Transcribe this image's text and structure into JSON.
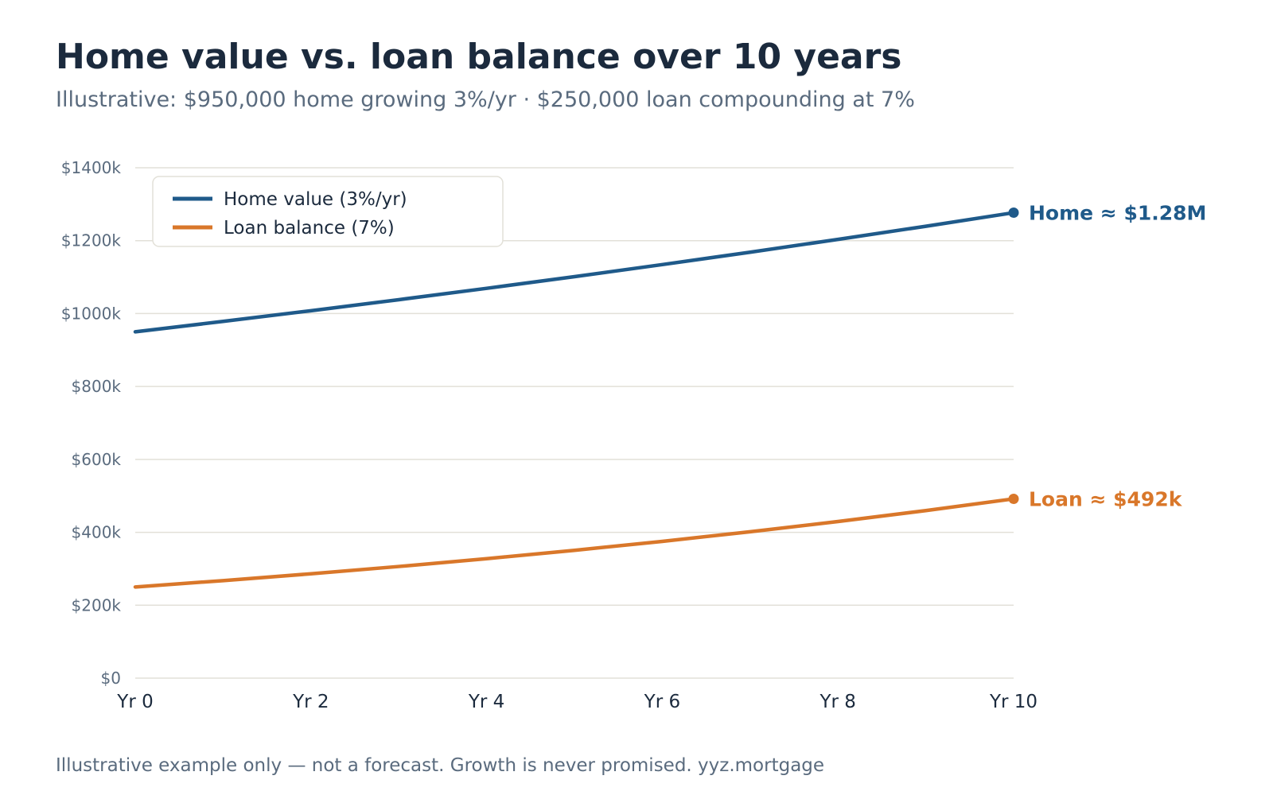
{
  "title": "Home value vs. loan balance over 10 years",
  "subtitle": "Illustrative: $950,000 home growing 3%/yr · $250,000 loan compounding at 7%",
  "footer": "Illustrative example only — not a forecast. Growth is never promised. yyz.mortgage",
  "chart_data": {
    "type": "line",
    "x": [
      0,
      1,
      2,
      3,
      4,
      5,
      6,
      7,
      8,
      9,
      10
    ],
    "x_tick_values": [
      0,
      2,
      4,
      6,
      8,
      10
    ],
    "x_tick_labels": [
      "Yr 0",
      "Yr 2",
      "Yr 4",
      "Yr 6",
      "Yr 8",
      "Yr 10"
    ],
    "y_tick_values": [
      0,
      200000,
      400000,
      600000,
      800000,
      1000000,
      1200000,
      1400000
    ],
    "y_tick_labels": [
      "$0",
      "$200k",
      "$400k",
      "$600k",
      "$800k",
      "$1000k",
      "$1200k",
      "$1400k"
    ],
    "ylim": [
      0,
      1400000
    ],
    "xlim": [
      0,
      10
    ],
    "grid": true,
    "legend_position": "top-left",
    "series": [
      {
        "name": "Home value (3%/yr)",
        "color": "#1f5a8a",
        "values": [
          950000,
          978500,
          1007855,
          1038091,
          1069233,
          1101310,
          1134349,
          1168380,
          1203431,
          1239534,
          1276720
        ],
        "end_label": "Home ≈ $1.28M"
      },
      {
        "name": "Loan balance (7%)",
        "color": "#d9772a",
        "values": [
          250000,
          267500,
          286225,
          306261,
          327699,
          350638,
          375183,
          401445,
          429547,
          459615,
          491788
        ],
        "end_label": "Loan ≈ $492k"
      }
    ]
  }
}
